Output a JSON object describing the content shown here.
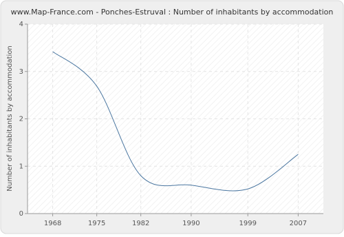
{
  "chart_data": {
    "type": "line",
    "title": "www.Map-France.com - Ponches-Estruval : Number of inhabitants by accommodation",
    "y_label": "Number of inhabitants by accommodation",
    "x": [
      1968,
      1975,
      1982,
      1990,
      1999,
      2007
    ],
    "series": [
      {
        "name": "Number of inhabitants by accommodation",
        "color": "#4a76a0",
        "values": [
          3.42,
          2.69,
          0.8,
          0.6,
          0.52,
          1.25
        ]
      }
    ],
    "xlim": [
      1964,
      2011
    ],
    "xticks": [
      1968,
      1975,
      1982,
      1990,
      1999,
      2007
    ],
    "ylim": [
      0,
      4
    ],
    "yticks": [
      0,
      1,
      2,
      3,
      4
    ],
    "grid": true
  }
}
